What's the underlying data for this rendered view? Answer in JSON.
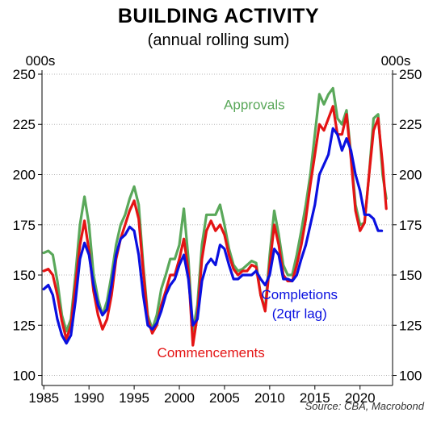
{
  "chart_data": {
    "type": "line",
    "title": "BUILDING ACTIVITY",
    "subtitle": "(annual rolling sum)",
    "ylabel_left": "000s",
    "ylabel_right": "000s",
    "source": "Source: CBA, Macrobond",
    "xlim": [
      1984.8,
      2023.6
    ],
    "ylim": [
      95,
      252
    ],
    "x_ticks": [
      1985,
      1990,
      1995,
      2000,
      2005,
      2010,
      2015,
      2020
    ],
    "y_ticks": [
      100,
      125,
      150,
      175,
      200,
      225,
      250
    ],
    "grid": "horizontal-dotted",
    "series": [
      {
        "name": "Approvals",
        "color": "#5aa85a",
        "points": [
          [
            1985.0,
            161
          ],
          [
            1985.5,
            162
          ],
          [
            1986.0,
            160
          ],
          [
            1986.5,
            147
          ],
          [
            1987.0,
            130
          ],
          [
            1987.5,
            122
          ],
          [
            1988.0,
            128
          ],
          [
            1988.5,
            150
          ],
          [
            1989.0,
            175
          ],
          [
            1989.5,
            189
          ],
          [
            1990.0,
            175
          ],
          [
            1990.5,
            150
          ],
          [
            1991.0,
            138
          ],
          [
            1991.5,
            130
          ],
          [
            1992.0,
            137
          ],
          [
            1992.5,
            150
          ],
          [
            1993.0,
            165
          ],
          [
            1993.5,
            175
          ],
          [
            1994.0,
            180
          ],
          [
            1994.5,
            188
          ],
          [
            1995.0,
            194
          ],
          [
            1995.5,
            185
          ],
          [
            1996.0,
            155
          ],
          [
            1996.5,
            130
          ],
          [
            1997.0,
            123
          ],
          [
            1997.5,
            130
          ],
          [
            1998.0,
            143
          ],
          [
            1998.5,
            150
          ],
          [
            1999.0,
            158
          ],
          [
            1999.5,
            158
          ],
          [
            2000.0,
            165
          ],
          [
            2000.5,
            183
          ],
          [
            2001.0,
            158
          ],
          [
            2001.5,
            122
          ],
          [
            2002.0,
            135
          ],
          [
            2002.5,
            165
          ],
          [
            2003.0,
            180
          ],
          [
            2003.5,
            180
          ],
          [
            2004.0,
            180
          ],
          [
            2004.5,
            185
          ],
          [
            2005.0,
            175
          ],
          [
            2005.5,
            163
          ],
          [
            2006.0,
            155
          ],
          [
            2006.5,
            152
          ],
          [
            2007.0,
            153
          ],
          [
            2007.5,
            155
          ],
          [
            2008.0,
            157
          ],
          [
            2008.5,
            156
          ],
          [
            2009.0,
            140
          ],
          [
            2009.5,
            133
          ],
          [
            2010.0,
            160
          ],
          [
            2010.5,
            182
          ],
          [
            2011.0,
            170
          ],
          [
            2011.5,
            155
          ],
          [
            2012.0,
            150
          ],
          [
            2012.5,
            150
          ],
          [
            2013.0,
            160
          ],
          [
            2013.5,
            172
          ],
          [
            2014.0,
            185
          ],
          [
            2014.5,
            200
          ],
          [
            2015.0,
            220
          ],
          [
            2015.5,
            240
          ],
          [
            2016.0,
            235
          ],
          [
            2016.5,
            240
          ],
          [
            2017.0,
            243
          ],
          [
            2017.5,
            228
          ],
          [
            2018.0,
            225
          ],
          [
            2018.5,
            232
          ],
          [
            2019.0,
            210
          ],
          [
            2019.5,
            185
          ],
          [
            2020.0,
            175
          ],
          [
            2020.5,
            176
          ],
          [
            2021.0,
            200
          ],
          [
            2021.5,
            228
          ],
          [
            2022.0,
            230
          ],
          [
            2022.5,
            200
          ],
          [
            2022.9,
            188
          ]
        ]
      },
      {
        "name": "Commencements",
        "color": "#e41414",
        "points": [
          [
            1985.0,
            152
          ],
          [
            1985.5,
            153
          ],
          [
            1986.0,
            150
          ],
          [
            1986.5,
            140
          ],
          [
            1987.0,
            127
          ],
          [
            1987.5,
            118
          ],
          [
            1988.0,
            125
          ],
          [
            1988.5,
            145
          ],
          [
            1989.0,
            165
          ],
          [
            1989.5,
            177
          ],
          [
            1990.0,
            162
          ],
          [
            1990.5,
            142
          ],
          [
            1991.0,
            130
          ],
          [
            1991.5,
            123
          ],
          [
            1992.0,
            128
          ],
          [
            1992.5,
            140
          ],
          [
            1993.0,
            158
          ],
          [
            1993.5,
            168
          ],
          [
            1994.0,
            175
          ],
          [
            1994.5,
            182
          ],
          [
            1995.0,
            187
          ],
          [
            1995.5,
            178
          ],
          [
            1996.0,
            152
          ],
          [
            1996.5,
            128
          ],
          [
            1997.0,
            121
          ],
          [
            1997.5,
            125
          ],
          [
            1998.0,
            135
          ],
          [
            1998.5,
            142
          ],
          [
            1999.0,
            150
          ],
          [
            1999.5,
            150
          ],
          [
            2000.0,
            158
          ],
          [
            2000.5,
            168
          ],
          [
            2001.0,
            152
          ],
          [
            2001.5,
            115
          ],
          [
            2002.0,
            130
          ],
          [
            2002.5,
            158
          ],
          [
            2003.0,
            172
          ],
          [
            2003.5,
            177
          ],
          [
            2004.0,
            172
          ],
          [
            2004.5,
            175
          ],
          [
            2005.0,
            170
          ],
          [
            2005.5,
            160
          ],
          [
            2006.0,
            153
          ],
          [
            2006.5,
            150
          ],
          [
            2007.0,
            152
          ],
          [
            2007.5,
            152
          ],
          [
            2008.0,
            155
          ],
          [
            2008.5,
            154
          ],
          [
            2009.0,
            140
          ],
          [
            2009.5,
            132
          ],
          [
            2010.0,
            155
          ],
          [
            2010.5,
            175
          ],
          [
            2011.0,
            165
          ],
          [
            2011.5,
            150
          ],
          [
            2012.0,
            147
          ],
          [
            2012.5,
            147
          ],
          [
            2013.0,
            155
          ],
          [
            2013.5,
            165
          ],
          [
            2014.0,
            178
          ],
          [
            2014.5,
            195
          ],
          [
            2015.0,
            210
          ],
          [
            2015.5,
            225
          ],
          [
            2016.0,
            222
          ],
          [
            2016.5,
            228
          ],
          [
            2017.0,
            234
          ],
          [
            2017.5,
            220
          ],
          [
            2018.0,
            220
          ],
          [
            2018.5,
            230
          ],
          [
            2019.0,
            208
          ],
          [
            2019.5,
            182
          ],
          [
            2020.0,
            172
          ],
          [
            2020.5,
            176
          ],
          [
            2021.0,
            200
          ],
          [
            2021.5,
            222
          ],
          [
            2022.0,
            228
          ],
          [
            2022.5,
            205
          ],
          [
            2022.9,
            183
          ]
        ]
      },
      {
        "name": "Completions (2qtr lag)",
        "color": "#0a10e0",
        "points": [
          [
            1985.0,
            143
          ],
          [
            1985.5,
            145
          ],
          [
            1986.0,
            140
          ],
          [
            1986.5,
            128
          ],
          [
            1987.0,
            120
          ],
          [
            1987.5,
            116
          ],
          [
            1988.0,
            120
          ],
          [
            1988.5,
            137
          ],
          [
            1989.0,
            158
          ],
          [
            1989.5,
            166
          ],
          [
            1990.0,
            160
          ],
          [
            1990.5,
            145
          ],
          [
            1991.0,
            135
          ],
          [
            1991.5,
            130
          ],
          [
            1992.0,
            133
          ],
          [
            1992.5,
            145
          ],
          [
            1993.0,
            160
          ],
          [
            1993.5,
            168
          ],
          [
            1994.0,
            170
          ],
          [
            1994.5,
            174
          ],
          [
            1995.0,
            172
          ],
          [
            1995.5,
            160
          ],
          [
            1996.0,
            140
          ],
          [
            1996.5,
            125
          ],
          [
            1997.0,
            123
          ],
          [
            1997.5,
            126
          ],
          [
            1998.0,
            132
          ],
          [
            1998.5,
            140
          ],
          [
            1999.0,
            145
          ],
          [
            1999.5,
            148
          ],
          [
            2000.0,
            155
          ],
          [
            2000.5,
            160
          ],
          [
            2001.0,
            148
          ],
          [
            2001.5,
            125
          ],
          [
            2002.0,
            128
          ],
          [
            2002.5,
            147
          ],
          [
            2003.0,
            155
          ],
          [
            2003.5,
            158
          ],
          [
            2004.0,
            155
          ],
          [
            2004.5,
            165
          ],
          [
            2005.0,
            163
          ],
          [
            2005.5,
            155
          ],
          [
            2006.0,
            148
          ],
          [
            2006.5,
            148
          ],
          [
            2007.0,
            150
          ],
          [
            2007.5,
            150
          ],
          [
            2008.0,
            150
          ],
          [
            2008.5,
            152
          ],
          [
            2009.0,
            148
          ],
          [
            2009.5,
            145
          ],
          [
            2010.0,
            150
          ],
          [
            2010.5,
            163
          ],
          [
            2011.0,
            160
          ],
          [
            2011.5,
            148
          ],
          [
            2012.0,
            148
          ],
          [
            2012.5,
            147
          ],
          [
            2013.0,
            150
          ],
          [
            2013.5,
            158
          ],
          [
            2014.0,
            165
          ],
          [
            2014.5,
            175
          ],
          [
            2015.0,
            185
          ],
          [
            2015.5,
            200
          ],
          [
            2016.0,
            205
          ],
          [
            2016.5,
            210
          ],
          [
            2017.0,
            223
          ],
          [
            2017.5,
            220
          ],
          [
            2018.0,
            212
          ],
          [
            2018.5,
            218
          ],
          [
            2019.0,
            212
          ],
          [
            2019.5,
            200
          ],
          [
            2020.0,
            192
          ],
          [
            2020.5,
            180
          ],
          [
            2021.0,
            180
          ],
          [
            2021.5,
            178
          ],
          [
            2022.0,
            172
          ],
          [
            2022.4,
            172
          ]
        ]
      }
    ],
    "annotations": [
      {
        "text": "Approvals",
        "series": "Approvals",
        "x": 2008.3,
        "y": 232.5
      },
      {
        "text": "Commencements",
        "series": "Commencements",
        "x": 2003.5,
        "y": 109
      },
      {
        "text": "Completions",
        "series": "Completions (2qtr lag)",
        "x": 2013.3,
        "y": 138
      },
      {
        "text": "(2qtr lag)",
        "series": "Completions (2qtr lag)",
        "x": 2013.3,
        "y": 128.5
      }
    ]
  }
}
